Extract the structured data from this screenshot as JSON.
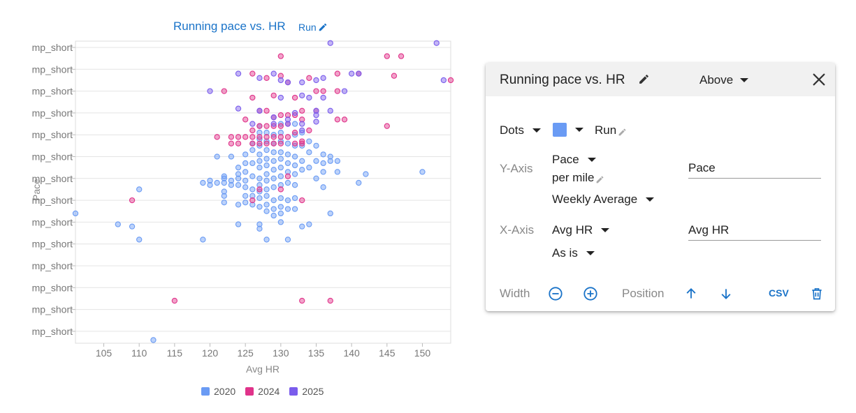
{
  "chart_header": {
    "title": "Running pace vs. HR",
    "series_link": "Run"
  },
  "chart_data": {
    "type": "scatter",
    "title": "Running pace vs. HR",
    "xlabel": "Avg HR",
    "ylabel": "Pace",
    "xlim": [
      101,
      154
    ],
    "x_ticks": [
      105,
      110,
      115,
      120,
      125,
      130,
      135,
      140,
      145,
      150
    ],
    "y_tick_labels": [
      "mp_short",
      "mp_short",
      "mp_short",
      "mp_short",
      "mp_short",
      "mp_short",
      "mp_short",
      "mp_short",
      "mp_short",
      "mp_short",
      "mp_short",
      "mp_short",
      "mp_short",
      "mp_short"
    ],
    "ylim": [
      0,
      13.6
    ],
    "y_axis_note": "y positions given as index along the tick rows (0 = top tick row, 13 = bottom)",
    "grid": true,
    "legend_position": "bottom",
    "series": [
      {
        "name": "2020",
        "color": "#6a9bf4",
        "points": [
          [
            101,
            7.6
          ],
          [
            107,
            8.1
          ],
          [
            109,
            8.2
          ],
          [
            110,
            8.8
          ],
          [
            110,
            6.5
          ],
          [
            112,
            13.4
          ],
          [
            119,
            8.8
          ],
          [
            119,
            6.2
          ],
          [
            120,
            6.1
          ],
          [
            120,
            6.3
          ],
          [
            121,
            5.0
          ],
          [
            121,
            6.2
          ],
          [
            122,
            5.9
          ],
          [
            122,
            6.0
          ],
          [
            122,
            6.2
          ],
          [
            122,
            6.6
          ],
          [
            122,
            6.8
          ],
          [
            122,
            7.1
          ],
          [
            123,
            6.1
          ],
          [
            123,
            6.3
          ],
          [
            123,
            5.0
          ],
          [
            124,
            5.5
          ],
          [
            124,
            5.8
          ],
          [
            124,
            6.0
          ],
          [
            124,
            6.3
          ],
          [
            124,
            7.2
          ],
          [
            124,
            8.1
          ],
          [
            125,
            4.9
          ],
          [
            125,
            5.3
          ],
          [
            125,
            5.7
          ],
          [
            125,
            6.1
          ],
          [
            125,
            6.4
          ],
          [
            125,
            6.8
          ],
          [
            125,
            7.1
          ],
          [
            126,
            4.4
          ],
          [
            126,
            4.7
          ],
          [
            126,
            5.3
          ],
          [
            126,
            5.9
          ],
          [
            126,
            6.5
          ],
          [
            126,
            6.8
          ],
          [
            126,
            7.2
          ],
          [
            127,
            3.6
          ],
          [
            127,
            3.9
          ],
          [
            127,
            4.2
          ],
          [
            127,
            4.5
          ],
          [
            127,
            4.9
          ],
          [
            127,
            5.2
          ],
          [
            127,
            5.5
          ],
          [
            127,
            6.0
          ],
          [
            127,
            6.3
          ],
          [
            127,
            6.6
          ],
          [
            127,
            6.9
          ],
          [
            127,
            7.3
          ],
          [
            127,
            8.1
          ],
          [
            127,
            8.3
          ],
          [
            128,
            3.9
          ],
          [
            128,
            4.3
          ],
          [
            128,
            4.7
          ],
          [
            128,
            5.1
          ],
          [
            128,
            5.4
          ],
          [
            128,
            5.8
          ],
          [
            128,
            6.1
          ],
          [
            128,
            6.5
          ],
          [
            128,
            6.8
          ],
          [
            128,
            7.2
          ],
          [
            128,
            7.5
          ],
          [
            128,
            8.8
          ],
          [
            129,
            4.0
          ],
          [
            129,
            4.4
          ],
          [
            129,
            4.8
          ],
          [
            129,
            5.2
          ],
          [
            129,
            5.6
          ],
          [
            129,
            6.0
          ],
          [
            129,
            6.4
          ],
          [
            129,
            7.0
          ],
          [
            129,
            7.4
          ],
          [
            129,
            7.7
          ],
          [
            130,
            3.5
          ],
          [
            130,
            3.9
          ],
          [
            130,
            4.3
          ],
          [
            130,
            4.8
          ],
          [
            130,
            5.1
          ],
          [
            130,
            5.5
          ],
          [
            130,
            5.9
          ],
          [
            130,
            6.3
          ],
          [
            130,
            6.9
          ],
          [
            130,
            7.3
          ],
          [
            130,
            7.6
          ],
          [
            130,
            8.0
          ],
          [
            131,
            4.4
          ],
          [
            131,
            4.9
          ],
          [
            131,
            5.3
          ],
          [
            131,
            5.7
          ],
          [
            131,
            6.2
          ],
          [
            131,
            7.0
          ],
          [
            131,
            7.4
          ],
          [
            131,
            8.8
          ],
          [
            132,
            3.5
          ],
          [
            132,
            4.0
          ],
          [
            132,
            4.5
          ],
          [
            132,
            5.0
          ],
          [
            132,
            5.4
          ],
          [
            132,
            5.8
          ],
          [
            132,
            6.3
          ],
          [
            132,
            6.9
          ],
          [
            132,
            7.4
          ],
          [
            133,
            3.9
          ],
          [
            133,
            4.5
          ],
          [
            133,
            5.2
          ],
          [
            133,
            5.6
          ],
          [
            133,
            8.2
          ],
          [
            134,
            4.3
          ],
          [
            134,
            4.8
          ],
          [
            134,
            5.5
          ],
          [
            134,
            8.1
          ],
          [
            135,
            4.5
          ],
          [
            135,
            5.2
          ],
          [
            135,
            6.0
          ],
          [
            136,
            4.9
          ],
          [
            136,
            5.3
          ],
          [
            136,
            5.7
          ],
          [
            136,
            6.4
          ],
          [
            137,
            5.0
          ],
          [
            137,
            5.2
          ],
          [
            137,
            7.6
          ],
          [
            138,
            5.2
          ],
          [
            138,
            5.7
          ],
          [
            141,
            6.2
          ],
          [
            142,
            5.8
          ],
          [
            150,
            5.7
          ]
        ]
      },
      {
        "name": "2024",
        "color": "#e0338a",
        "points": [
          [
            130,
            0.4
          ],
          [
            145,
            0.4
          ],
          [
            147,
            0.4
          ],
          [
            126,
            1.2
          ],
          [
            128,
            1.4
          ],
          [
            130,
            1.3
          ],
          [
            131,
            1.6
          ],
          [
            134,
            1.4
          ],
          [
            138,
            1.2
          ],
          [
            141,
            1.2
          ],
          [
            146,
            1.3
          ],
          [
            122,
            2.0
          ],
          [
            126,
            2.3
          ],
          [
            129,
            2.2
          ],
          [
            132,
            2.3
          ],
          [
            135,
            2.0
          ],
          [
            136,
            2.0
          ],
          [
            138,
            2.0
          ],
          [
            154,
            1.5
          ],
          [
            125,
            3.3
          ],
          [
            127,
            2.9
          ],
          [
            128,
            2.9
          ],
          [
            129,
            3.2
          ],
          [
            130,
            3.1
          ],
          [
            131,
            3.1
          ],
          [
            132,
            3.1
          ],
          [
            133,
            2.9
          ],
          [
            133,
            3.3
          ],
          [
            135,
            2.9
          ],
          [
            138,
            3.3
          ],
          [
            139,
            3.3
          ],
          [
            145,
            3.6
          ],
          [
            126,
            3.8
          ],
          [
            127,
            3.6
          ],
          [
            128,
            3.6
          ],
          [
            129,
            3.6
          ],
          [
            130,
            3.6
          ],
          [
            131,
            3.5
          ],
          [
            132,
            3.9
          ],
          [
            134,
            3.8
          ],
          [
            121,
            4.1
          ],
          [
            123,
            4.1
          ],
          [
            124,
            4.1
          ],
          [
            125,
            4.1
          ],
          [
            126,
            4.1
          ],
          [
            127,
            4.1
          ],
          [
            128,
            4.1
          ],
          [
            129,
            4.1
          ],
          [
            130,
            4.1
          ],
          [
            131,
            4.1
          ],
          [
            133,
            4.3
          ],
          [
            123,
            4.4
          ],
          [
            124,
            4.4
          ],
          [
            126,
            4.4
          ],
          [
            127,
            4.4
          ],
          [
            128,
            4.4
          ],
          [
            129,
            4.4
          ],
          [
            130,
            4.4
          ],
          [
            132,
            4.4
          ],
          [
            133,
            4.4
          ],
          [
            127,
            6.5
          ],
          [
            130,
            6.5
          ],
          [
            131,
            5.9
          ],
          [
            109,
            7.0
          ],
          [
            126,
            7.0
          ],
          [
            133,
            7.0
          ],
          [
            115,
            11.6
          ],
          [
            133,
            11.6
          ],
          [
            137,
            11.6
          ]
        ]
      },
      {
        "name": "2025",
        "color": "#7a5cec",
        "points": [
          [
            137,
            -0.2
          ],
          [
            152,
            -0.2
          ],
          [
            124,
            1.2
          ],
          [
            127,
            1.4
          ],
          [
            129,
            1.2
          ],
          [
            130,
            1.5
          ],
          [
            131,
            1.6
          ],
          [
            133,
            1.6
          ],
          [
            135,
            1.5
          ],
          [
            136,
            1.4
          ],
          [
            140,
            1.2
          ],
          [
            141,
            1.2
          ],
          [
            153,
            1.5
          ],
          [
            120,
            2.0
          ],
          [
            130,
            2.3
          ],
          [
            133,
            2.2
          ],
          [
            134,
            2.3
          ],
          [
            136,
            2.3
          ],
          [
            139,
            2.0
          ],
          [
            124,
            2.8
          ],
          [
            127,
            2.9
          ],
          [
            129,
            3.2
          ],
          [
            131,
            3.3
          ],
          [
            132,
            3.0
          ],
          [
            135,
            2.9
          ],
          [
            135,
            3.1
          ],
          [
            137,
            2.9
          ],
          [
            126,
            3.5
          ],
          [
            129,
            3.5
          ],
          [
            131,
            3.5
          ],
          [
            133,
            3.5
          ],
          [
            135,
            3.4
          ],
          [
            133,
            3.8
          ]
        ]
      }
    ]
  },
  "legend": [
    {
      "label": "2020",
      "color": "#6a9bf4"
    },
    {
      "label": "2024",
      "color": "#e0338a"
    },
    {
      "label": "2025",
      "color": "#7a5cec"
    }
  ],
  "panel": {
    "title": "Running pace vs. HR",
    "position_value": "Above",
    "chart_type": "Dots",
    "series_color": "#6a9bf4",
    "series_name": "Run",
    "y_axis": {
      "label": "Y-Axis",
      "metric": "Pace",
      "unit": "per mile",
      "aggregation": "Weekly Average",
      "title_value": "Pace"
    },
    "x_axis": {
      "label": "X-Axis",
      "metric": "Avg HR",
      "aggregation": "As is",
      "title_value": "Avg HR"
    },
    "width_label": "Width",
    "position_label": "Position",
    "csv_label": "CSV"
  }
}
